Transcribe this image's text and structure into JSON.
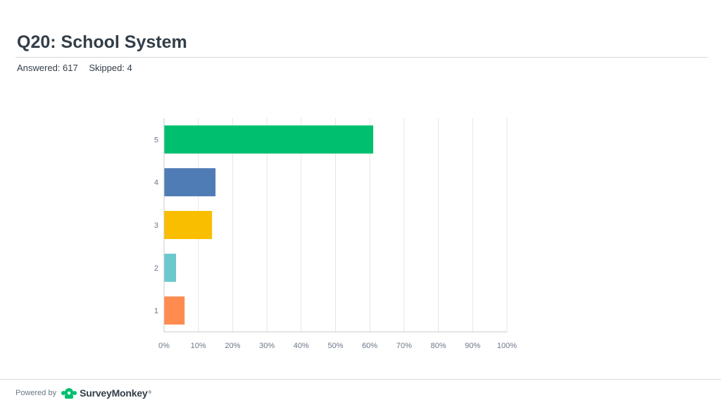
{
  "page": {
    "title": "Q20: School System",
    "answered": "Answered: 617",
    "skipped": "Skipped: 4"
  },
  "footer": {
    "powered_by": "Powered by",
    "brand": "SurveyMonkey",
    "trademark": "®"
  },
  "colors": {
    "title": "#333e48",
    "grid": "#e6e6e6",
    "axis": "#c8c8c8",
    "tick_label": "#6b7787"
  },
  "chart_data": {
    "type": "bar",
    "orientation": "horizontal",
    "categories": [
      "5",
      "4",
      "3",
      "2",
      "1"
    ],
    "values": [
      61,
      15,
      14,
      3.5,
      6
    ],
    "bar_colors": [
      "#00bf6f",
      "#507cb6",
      "#f9be00",
      "#6bc8cd",
      "#ff8b4f"
    ],
    "xlim": [
      0,
      100
    ],
    "x_ticks": [
      "0%",
      "10%",
      "20%",
      "30%",
      "40%",
      "50%",
      "60%",
      "70%",
      "80%",
      "90%",
      "100%"
    ],
    "grid": true
  }
}
